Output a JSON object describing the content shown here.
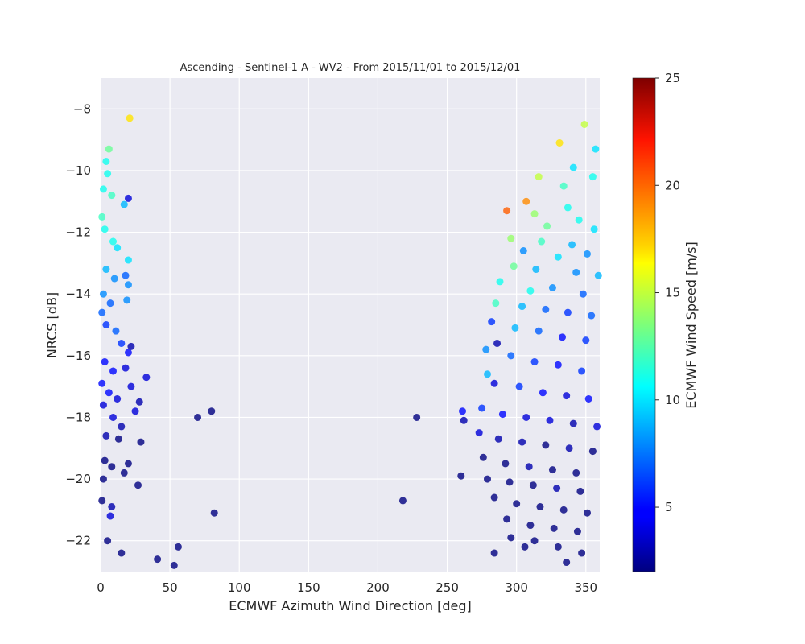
{
  "chart_data": {
    "type": "scatter",
    "title": "Ascending - Sentinel-1 A - WV2 - From 2015/11/01 to 2015/12/01",
    "xlabel": "ECMWF Azimuth Wind Direction [deg]",
    "ylabel": "NRCS [dB]",
    "xlim": [
      0,
      360
    ],
    "ylim": [
      -23,
      -7
    ],
    "xticks": [
      0,
      50,
      100,
      150,
      200,
      250,
      300,
      350
    ],
    "yticks": [
      -8,
      -10,
      -12,
      -14,
      -16,
      -18,
      -20,
      -22
    ],
    "grid": true,
    "colorbar": {
      "label": "ECMWF Wind Speed [m/s]",
      "range": [
        2,
        25
      ],
      "ticks": [
        5,
        10,
        15,
        20,
        25
      ],
      "colormap": "jet"
    },
    "marker_color_encodes": "wind_speed",
    "points": [
      [
        21,
        -8.3,
        17
      ],
      [
        6,
        -9.3,
        13
      ],
      [
        4,
        -9.7,
        11
      ],
      [
        5,
        -10.1,
        11
      ],
      [
        20,
        -10.9,
        4
      ],
      [
        17,
        -11.1,
        9
      ],
      [
        2,
        -10.6,
        11
      ],
      [
        8,
        -10.8,
        12
      ],
      [
        1,
        -11.5,
        12
      ],
      [
        3,
        -11.9,
        11
      ],
      [
        9,
        -12.3,
        11
      ],
      [
        12,
        -12.5,
        10
      ],
      [
        20,
        -12.9,
        10
      ],
      [
        4,
        -13.2,
        9
      ],
      [
        10,
        -13.5,
        8
      ],
      [
        18,
        -13.4,
        7
      ],
      [
        20,
        -13.7,
        8
      ],
      [
        2,
        -14.0,
        8
      ],
      [
        7,
        -14.3,
        7
      ],
      [
        19,
        -14.2,
        8
      ],
      [
        1,
        -14.6,
        7
      ],
      [
        4,
        -15.0,
        6
      ],
      [
        11,
        -15.2,
        7
      ],
      [
        15,
        -15.6,
        6
      ],
      [
        20,
        -15.9,
        5
      ],
      [
        22,
        -15.7,
        3
      ],
      [
        3,
        -16.2,
        5
      ],
      [
        9,
        -16.5,
        5
      ],
      [
        18,
        -16.4,
        4
      ],
      [
        33,
        -16.7,
        4
      ],
      [
        1,
        -16.9,
        5
      ],
      [
        6,
        -17.2,
        5
      ],
      [
        12,
        -17.4,
        4
      ],
      [
        22,
        -17.0,
        4
      ],
      [
        28,
        -17.5,
        3
      ],
      [
        25,
        -17.8,
        4
      ],
      [
        2,
        -17.6,
        4
      ],
      [
        9,
        -18.0,
        4
      ],
      [
        15,
        -18.3,
        3
      ],
      [
        4,
        -18.6,
        3
      ],
      [
        13,
        -18.7,
        2
      ],
      [
        29,
        -18.8,
        2
      ],
      [
        20,
        -19.5,
        2
      ],
      [
        17,
        -19.8,
        2
      ],
      [
        3,
        -19.4,
        2
      ],
      [
        8,
        -19.6,
        2
      ],
      [
        2,
        -20.0,
        2
      ],
      [
        27,
        -20.2,
        2
      ],
      [
        1,
        -20.7,
        2
      ],
      [
        8,
        -20.9,
        3
      ],
      [
        7,
        -21.2,
        4
      ],
      [
        5,
        -22.0,
        2
      ],
      [
        15,
        -22.4,
        2
      ],
      [
        41,
        -22.6,
        2
      ],
      [
        53,
        -22.8,
        2
      ],
      [
        56,
        -22.2,
        2
      ],
      [
        70,
        -18.0,
        2
      ],
      [
        80,
        -17.8,
        2
      ],
      [
        82,
        -21.1,
        2
      ],
      [
        218,
        -20.7,
        2
      ],
      [
        228,
        -18.0,
        2
      ],
      [
        261,
        -17.8,
        5
      ],
      [
        262,
        -18.1,
        3
      ],
      [
        260,
        -19.9,
        2
      ],
      [
        349,
        -8.5,
        15
      ],
      [
        331,
        -9.1,
        17
      ],
      [
        357,
        -9.3,
        10
      ],
      [
        341,
        -9.9,
        10
      ],
      [
        355,
        -10.2,
        11
      ],
      [
        316,
        -10.2,
        15
      ],
      [
        334,
        -10.5,
        12
      ],
      [
        307,
        -11.0,
        19
      ],
      [
        293,
        -11.3,
        20
      ],
      [
        313,
        -11.4,
        14
      ],
      [
        337,
        -11.2,
        11
      ],
      [
        322,
        -11.8,
        13
      ],
      [
        345,
        -11.6,
        11
      ],
      [
        356,
        -11.9,
        10
      ],
      [
        296,
        -12.2,
        14
      ],
      [
        318,
        -12.3,
        12
      ],
      [
        340,
        -12.4,
        9
      ],
      [
        305,
        -12.6,
        8
      ],
      [
        330,
        -12.8,
        10
      ],
      [
        351,
        -12.7,
        8
      ],
      [
        298,
        -13.1,
        13
      ],
      [
        314,
        -13.2,
        9
      ],
      [
        343,
        -13.3,
        8
      ],
      [
        359,
        -13.4,
        9
      ],
      [
        288,
        -13.6,
        11
      ],
      [
        310,
        -13.9,
        11
      ],
      [
        326,
        -13.8,
        8
      ],
      [
        348,
        -14.0,
        7
      ],
      [
        285,
        -14.3,
        12
      ],
      [
        304,
        -14.4,
        9
      ],
      [
        321,
        -14.5,
        7
      ],
      [
        337,
        -14.6,
        6
      ],
      [
        354,
        -14.7,
        7
      ],
      [
        282,
        -14.9,
        6
      ],
      [
        299,
        -15.1,
        9
      ],
      [
        316,
        -15.2,
        7
      ],
      [
        333,
        -15.4,
        5
      ],
      [
        350,
        -15.5,
        6
      ],
      [
        286,
        -15.6,
        3
      ],
      [
        278,
        -15.8,
        8
      ],
      [
        296,
        -16.0,
        7
      ],
      [
        313,
        -16.2,
        6
      ],
      [
        330,
        -16.3,
        5
      ],
      [
        347,
        -16.5,
        6
      ],
      [
        279,
        -16.6,
        9
      ],
      [
        284,
        -16.9,
        4
      ],
      [
        302,
        -17.0,
        6
      ],
      [
        319,
        -17.2,
        5
      ],
      [
        336,
        -17.3,
        4
      ],
      [
        352,
        -17.4,
        5
      ],
      [
        275,
        -17.7,
        6
      ],
      [
        290,
        -17.9,
        5
      ],
      [
        307,
        -18.0,
        4
      ],
      [
        324,
        -18.1,
        4
      ],
      [
        341,
        -18.2,
        3
      ],
      [
        358,
        -18.3,
        4
      ],
      [
        273,
        -18.5,
        4
      ],
      [
        287,
        -18.7,
        3
      ],
      [
        304,
        -18.8,
        3
      ],
      [
        321,
        -18.9,
        2
      ],
      [
        338,
        -19.0,
        3
      ],
      [
        355,
        -19.1,
        2
      ],
      [
        276,
        -19.3,
        2
      ],
      [
        292,
        -19.5,
        2
      ],
      [
        309,
        -19.6,
        3
      ],
      [
        326,
        -19.7,
        2
      ],
      [
        343,
        -19.8,
        2
      ],
      [
        279,
        -20.0,
        2
      ],
      [
        295,
        -20.1,
        2
      ],
      [
        312,
        -20.2,
        2
      ],
      [
        329,
        -20.3,
        3
      ],
      [
        346,
        -20.4,
        2
      ],
      [
        284,
        -20.6,
        2
      ],
      [
        300,
        -20.8,
        2
      ],
      [
        317,
        -20.9,
        2
      ],
      [
        334,
        -21.0,
        2
      ],
      [
        351,
        -21.1,
        2
      ],
      [
        293,
        -21.3,
        2
      ],
      [
        310,
        -21.5,
        2
      ],
      [
        327,
        -21.6,
        2
      ],
      [
        344,
        -21.7,
        2
      ],
      [
        296,
        -21.9,
        2
      ],
      [
        313,
        -22.0,
        2
      ],
      [
        330,
        -22.2,
        2
      ],
      [
        347,
        -22.4,
        2
      ],
      [
        284,
        -22.4,
        2
      ],
      [
        336,
        -22.7,
        2
      ],
      [
        306,
        -22.2,
        2
      ]
    ]
  }
}
